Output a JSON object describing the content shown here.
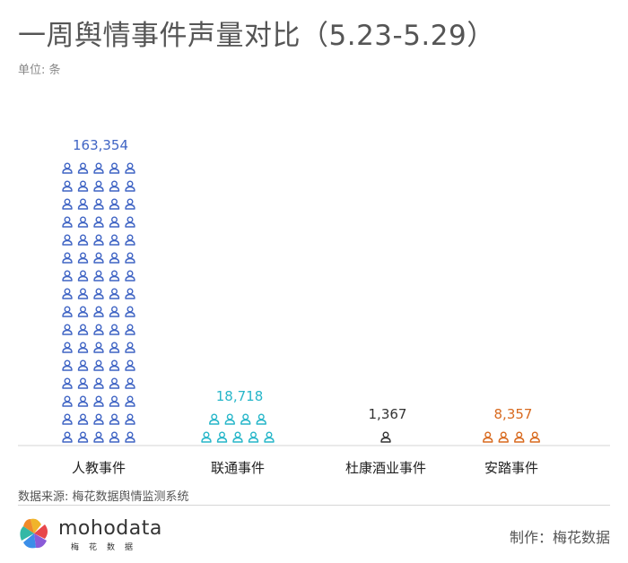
{
  "header": {
    "title": "一周舆情事件声量对比（5.23-5.29）",
    "unit": "单位: 条"
  },
  "chart_data": {
    "type": "pictograph",
    "categories": [
      "人教事件",
      "联通事件",
      "杜康酒业事件",
      "安踏事件"
    ],
    "values": [
      163354,
      18718,
      1367,
      8357
    ],
    "value_labels": [
      "163,354",
      "18,718",
      "1,367",
      "8,357"
    ],
    "icon_counts": [
      80,
      9,
      1,
      4
    ],
    "colors": [
      "#3f64c4",
      "#26b6c9",
      "#333333",
      "#d86a1f"
    ],
    "label_colors": [
      "#3f64c4",
      "#26b6c9",
      "#333333",
      "#d86a1f"
    ],
    "icon": "person-icon",
    "grid": false,
    "legend": "none"
  },
  "footer": {
    "source": "数据来源: 梅花数据舆情监测系统",
    "logo_word": "mohodata",
    "logo_sub": "梅花数据",
    "credit": "制作：梅花数据"
  }
}
